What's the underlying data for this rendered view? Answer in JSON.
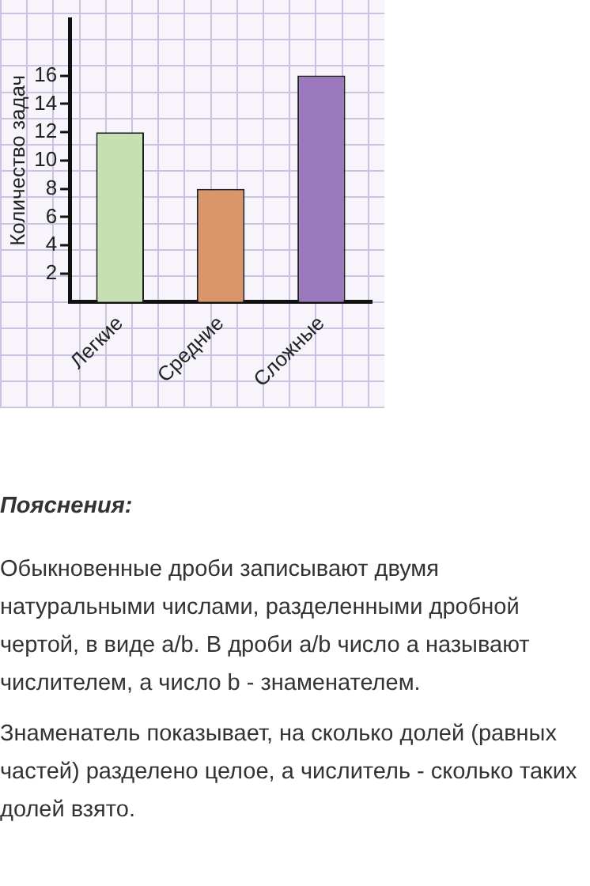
{
  "chart_data": {
    "type": "bar",
    "ylabel": "Количество задач",
    "categories": [
      "Легкие",
      "Средние",
      "Сложные"
    ],
    "values": [
      12,
      8,
      16
    ],
    "colors": [
      "#c6e0b4",
      "#d9966a",
      "#9b78bb"
    ],
    "ylim": [
      0,
      20
    ],
    "yticks": [
      2,
      4,
      6,
      8,
      10,
      12,
      14,
      16
    ],
    "grid": false,
    "legend": false,
    "annotations": [
      "Пояснения:",
      "Обыкновенные дроби записывают двумя натуральными числами, разделенными дробной чертой, в виде a/b. В дроби a/b число a называют числителем, а число b - знаменателем.",
      "Знаменатель показывает, на сколько долей (равных частей) разделено целое, а числитель - сколько таких долей взято."
    ]
  }
}
